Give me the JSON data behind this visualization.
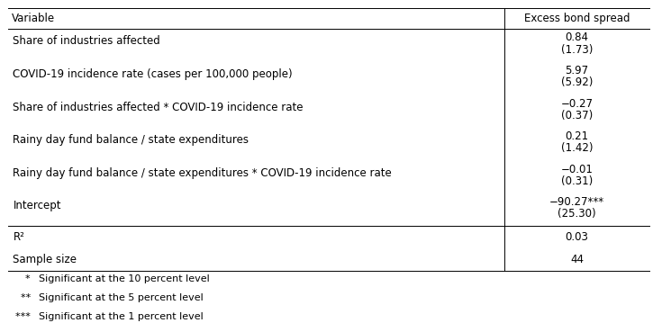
{
  "header_left": "Variable",
  "header_right": "Excess bond spread",
  "rows": [
    {
      "label": "Share of industries affected",
      "coef": "0.84",
      "se": "(1.73)"
    },
    {
      "label": "COVID-19 incidence rate (cases per 100,000 people)",
      "coef": "5.97",
      "se": "(5.92)"
    },
    {
      "label": "Share of industries affected * COVID-19 incidence rate",
      "coef": "−0.27",
      "se": "(0.37)"
    },
    {
      "label": "Rainy day fund balance / state expenditures",
      "coef": "0.21",
      "se": "(1.42)"
    },
    {
      "label": "Rainy day fund balance / state expenditures * COVID-19 incidence rate",
      "coef": "−0.01",
      "se": "(0.31)"
    },
    {
      "label": "Intercept",
      "coef": "−90.27***",
      "se": "(25.30)"
    }
  ],
  "stats": [
    {
      "label": "R²",
      "value": "0.03"
    },
    {
      "label": "Sample size",
      "value": "44"
    }
  ],
  "footnotes": [
    [
      "  *",
      "Significant at the 10 percent level"
    ],
    [
      "  **",
      "Significant at the 5 percent level"
    ],
    [
      "  ***",
      "Significant at the 1 percent level"
    ]
  ],
  "col_split": 0.772,
  "bg_color": "#ffffff",
  "text_color": "#000000",
  "line_color": "#000000",
  "font_size": 8.5,
  "footnote_font_size": 8.0
}
